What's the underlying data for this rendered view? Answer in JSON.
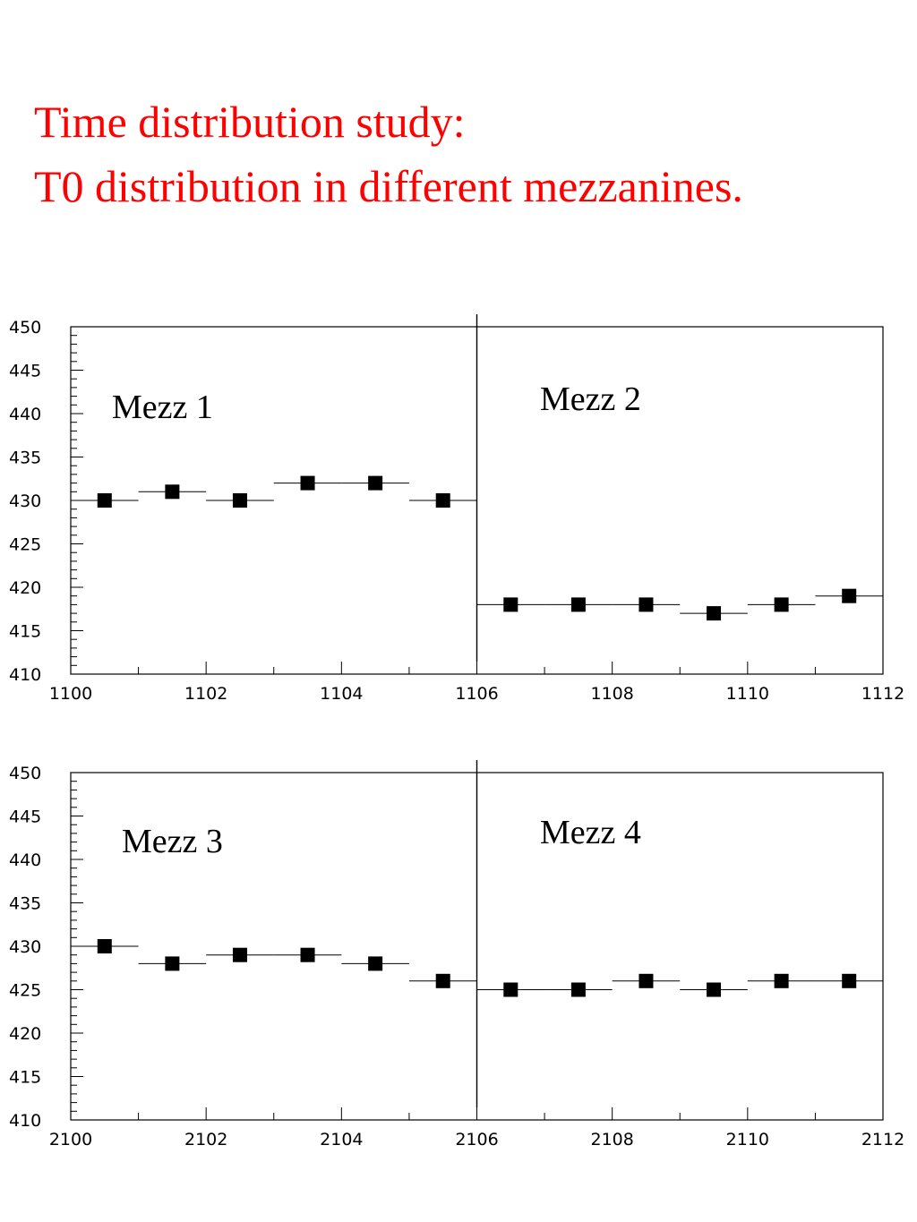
{
  "title": {
    "line1": "Time distribution study:",
    "line2": "T0 distribution in different mezzanines."
  },
  "colors": {
    "title": "#ff0000",
    "markers": "#000000",
    "axes": "#000000"
  },
  "chart_data": [
    {
      "type": "scatter",
      "title": "",
      "xlabel": "",
      "ylabel": "",
      "xlim": [
        1100,
        1112
      ],
      "ylim": [
        410,
        450
      ],
      "x_tick_labels": [
        "1100",
        "1102",
        "1104",
        "1106",
        "1108",
        "1110",
        "1112"
      ],
      "y_tick_labels": [
        "410",
        "415",
        "420",
        "425",
        "430",
        "435",
        "440",
        "445",
        "450"
      ],
      "divider_x": 1106,
      "grid": false,
      "x": [
        1100.5,
        1101.5,
        1102.5,
        1103.5,
        1104.5,
        1105.5,
        1106.5,
        1107.5,
        1108.5,
        1109.5,
        1110.5,
        1111.5
      ],
      "y": [
        430,
        431,
        430,
        432,
        432,
        430,
        418,
        418,
        418,
        417,
        418,
        419
      ],
      "annotations": [
        "Mezz 1",
        "Mezz 2"
      ]
    },
    {
      "type": "scatter",
      "title": "",
      "xlabel": "",
      "ylabel": "",
      "xlim": [
        2100,
        2112
      ],
      "ylim": [
        410,
        450
      ],
      "x_tick_labels": [
        "2100",
        "2102",
        "2104",
        "2106",
        "2108",
        "2110",
        "2112"
      ],
      "y_tick_labels": [
        "410",
        "415",
        "420",
        "425",
        "430",
        "435",
        "440",
        "445",
        "450"
      ],
      "divider_x": 2106,
      "grid": false,
      "x": [
        2100.5,
        2101.5,
        2102.5,
        2103.5,
        2104.5,
        2105.5,
        2106.5,
        2107.5,
        2108.5,
        2109.5,
        2110.5,
        2111.5
      ],
      "y": [
        430,
        428,
        429,
        429,
        428,
        426,
        425,
        425,
        426,
        425,
        426,
        426
      ],
      "annotations": [
        "Mezz 3",
        "Mezz 4"
      ]
    }
  ]
}
